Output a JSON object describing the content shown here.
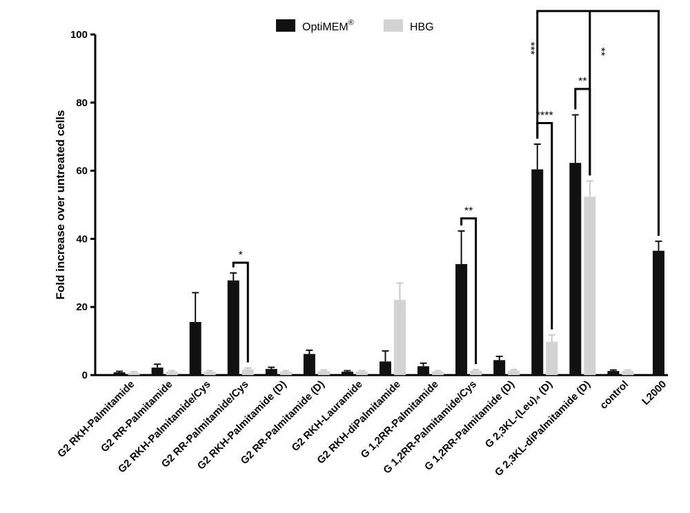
{
  "chart_data": {
    "type": "bar",
    "title": "",
    "xlabel": "",
    "ylabel": "Fold increase over untreated cells",
    "ylim": [
      0,
      100
    ],
    "yticks": [
      0,
      20,
      40,
      60,
      80,
      100
    ],
    "grid": false,
    "legend_position": "top-center",
    "categories": [
      "G2 RKH-Palmitamide",
      "G2 RR-Palmitamide",
      "G2 RKH-Palmitamide/Cys",
      "G2 RR-Palmitamide/Cys",
      "G2 RKH-Palmitamide (D)",
      "G2 RR-Palmitamide (D)",
      "G2 RKH-Lauramide",
      "G2 RKH-diPalmitamide",
      "G 1,2RR-Palmitamide",
      "G 1,2RR-Palmitamide/Cys",
      "G 1,2RR-Palmitamide (D)",
      "G 2,3KL-(Leu)₄ (D)",
      "G 2,3KL-diPalmitamide (D)",
      "control",
      "L2000"
    ],
    "series": [
      {
        "name": "OptiMEM",
        "name_sup": "®",
        "color": "#111111",
        "values": [
          0.8,
          2.2,
          15.6,
          27.8,
          1.8,
          6.2,
          1.0,
          4.0,
          2.6,
          32.6,
          4.4,
          60.4,
          62.3,
          1.2,
          36.5
        ],
        "errors": [
          0.3,
          1.0,
          8.6,
          2.2,
          0.5,
          1.1,
          0.3,
          3.1,
          0.9,
          9.7,
          1.1,
          7.4,
          14.1,
          0.3,
          2.8
        ]
      },
      {
        "name": "HBG",
        "color": "#d3d3d3",
        "values": [
          0.7,
          1.0,
          1.0,
          1.7,
          1.0,
          1.2,
          1.0,
          22.1,
          1.0,
          1.3,
          1.3,
          9.8,
          52.4,
          1.2,
          null
        ],
        "errors": [
          0.3,
          0.3,
          0.3,
          0.4,
          0.3,
          0.3,
          0.3,
          4.9,
          0.3,
          0.3,
          0.3,
          2.0,
          4.6,
          0.3,
          null
        ]
      }
    ],
    "annotations": [
      {
        "text": "*",
        "from": [
          3,
          0
        ],
        "to": [
          3,
          1
        ],
        "bracket_y": 33
      },
      {
        "text": "**",
        "from": [
          9,
          0
        ],
        "to": [
          9,
          1
        ],
        "bracket_y": 46
      },
      {
        "text": "****",
        "from": [
          11,
          0
        ],
        "to": [
          11,
          1
        ],
        "bracket_y": 74
      },
      {
        "text": "**",
        "from": [
          12,
          0
        ],
        "to": [
          12,
          1
        ],
        "bracket_y": 84
      },
      {
        "text": "***",
        "from": [
          11,
          0
        ],
        "to": [
          14,
          0
        ],
        "bracket_y": 106,
        "vertical": true
      },
      {
        "text": "**",
        "from": [
          12,
          1
        ],
        "to": [
          14,
          0
        ],
        "bracket_y": 106,
        "vertical": true
      }
    ]
  }
}
